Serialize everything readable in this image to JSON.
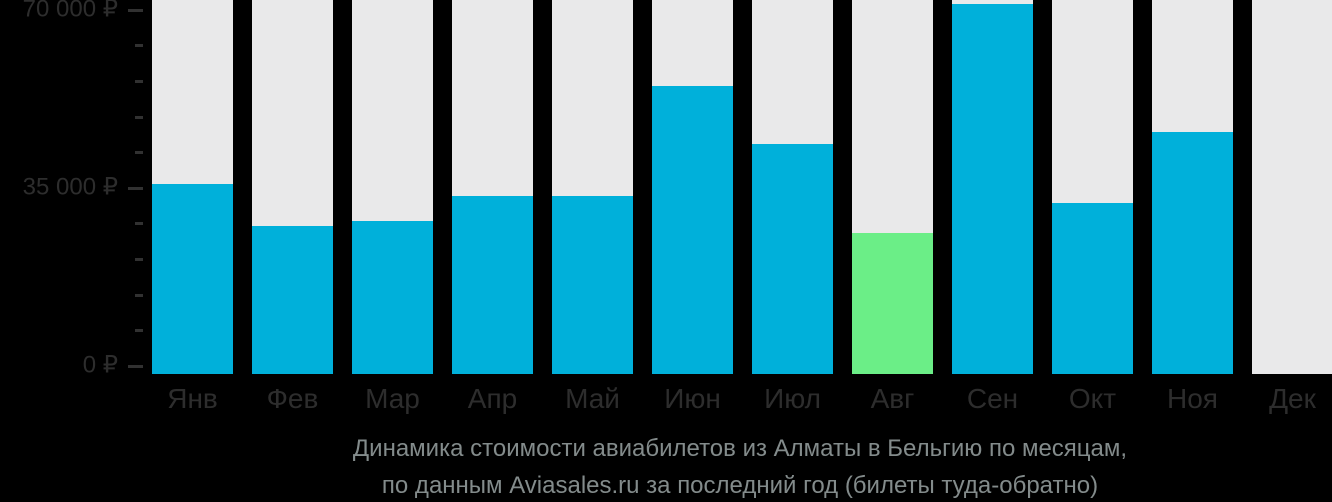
{
  "chart_data": {
    "type": "bar",
    "title": "Динамика стоимости авиабилетов из Алматы в Бельгию по месяцам, по данным Aviasales.ru за последний год (билеты туда-обратно)",
    "caption_lines": [
      "Динамика стоимости авиабилетов из Алматы в Бельгию по месяцам,",
      "по данным Aviasales.ru за последний год (билеты туда-обратно)"
    ],
    "categories": [
      "Янв",
      "Фев",
      "Мар",
      "Апр",
      "Май",
      "Июн",
      "Июл",
      "Авг",
      "Сен",
      "Окт",
      "Ноя",
      "Дек"
    ],
    "values": [
      35700,
      27400,
      28500,
      33300,
      33300,
      55000,
      43600,
      26100,
      71100,
      32000,
      46000,
      null
    ],
    "unit": "₽",
    "highlight_index": 7,
    "highlight_label": "Авг",
    "y_axis": {
      "min": 0,
      "max_visible": 70000,
      "tick_step": 7000,
      "labeled_ticks": [
        {
          "value": 0,
          "label": "0 ₽"
        },
        {
          "value": 35000,
          "label": "35 000 ₽"
        },
        {
          "value": 70000,
          "label": "70 000 ₽"
        }
      ]
    },
    "legend": null,
    "grid": false,
    "colors": {
      "bar": "#00b0da",
      "highlight": "#6bee87",
      "column_bg": "#e9e9ea",
      "background": "#000000",
      "axis_text": "#2d2d2d",
      "caption_text": "#838b8b"
    }
  }
}
